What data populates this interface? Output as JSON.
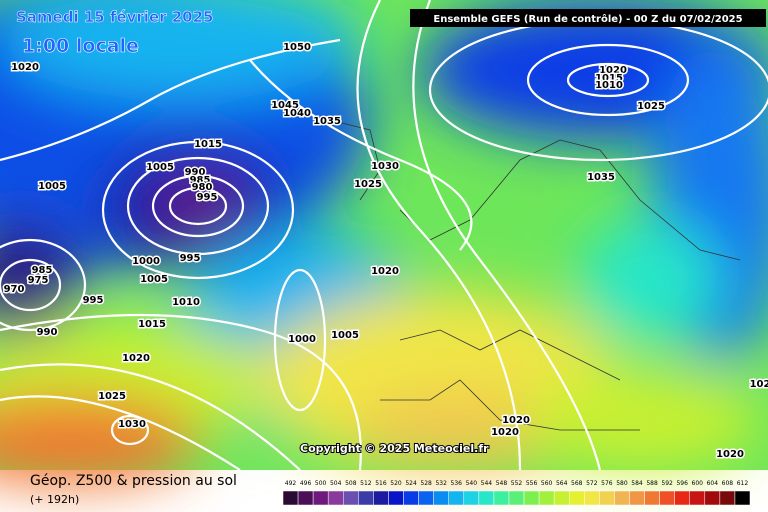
{
  "header": {
    "date": "Samedi 15 février 2025",
    "time": "1:00 locale",
    "run": "Ensemble GEFS  (Run de contrôle)  -  00 Z du 07/02/2025"
  },
  "copyright": "Copyright © 2025 Meteociel.fr",
  "footer": {
    "title": "Géop. Z500 & pression au sol",
    "subtitle": "(+ 192h)"
  },
  "scale": {
    "labels": [
      492,
      496,
      500,
      504,
      508,
      512,
      516,
      520,
      524,
      528,
      532,
      536,
      540,
      544,
      548,
      552,
      556,
      560,
      564,
      568,
      572,
      576,
      580,
      584,
      588,
      592,
      596,
      600,
      604,
      608,
      612
    ],
    "colors": [
      "#2b0a33",
      "#4a0f57",
      "#6e1a7d",
      "#8a3a9c",
      "#6a4fb0",
      "#3c3ca8",
      "#1c1ca0",
      "#0a14c8",
      "#0a3ce6",
      "#0a64f0",
      "#0a8cf0",
      "#14b4f0",
      "#1ed2e6",
      "#28e6c8",
      "#3cf0a0",
      "#5af078",
      "#7df050",
      "#a0f03c",
      "#c8f032",
      "#e6f032",
      "#f0e646",
      "#f0d250",
      "#f0b450",
      "#f09646",
      "#f07832",
      "#f05028",
      "#e62814",
      "#c81414",
      "#a00a0a",
      "#780a0a",
      "#000000"
    ]
  },
  "isobar_labels": [
    1020,
    1050,
    1045,
    1040,
    1035,
    1015,
    1005,
    990,
    985,
    980,
    995,
    1005,
    1030,
    1025,
    1000,
    995,
    985,
    975,
    970,
    1005,
    995,
    1010,
    990,
    1015,
    1000,
    1005,
    1020,
    1025,
    1030,
    1020,
    1035,
    1020,
    1015,
    1010,
    1025,
    1020,
    1020,
    1020,
    102
  ]
}
